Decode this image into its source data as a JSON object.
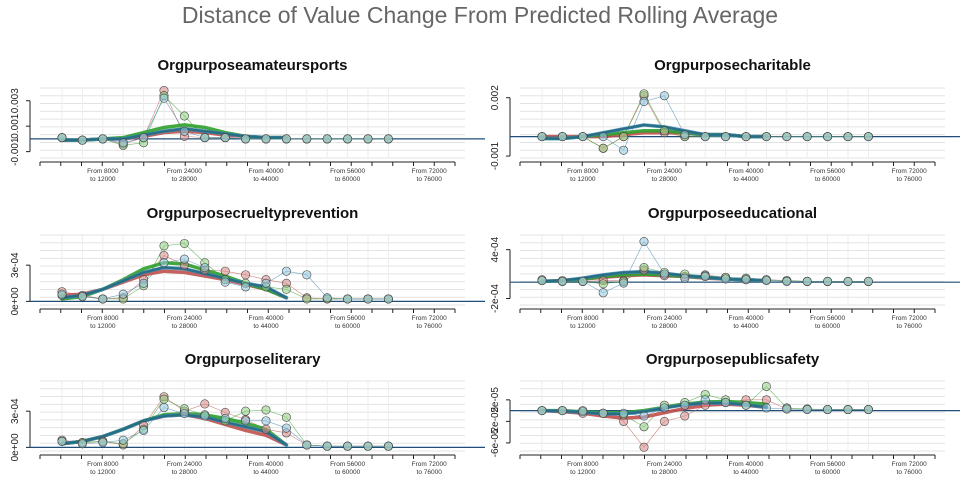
{
  "title": "Distance of Value Change From Predicted Rolling Average",
  "colors": {
    "red": "#c0504d",
    "green": "#2ea02c",
    "blue": "#3b83b1",
    "teal": "#236a7d",
    "baseline": "#1f4e79"
  },
  "x_tick_labels": [
    [
      "From 8000",
      "to 12000"
    ],
    [
      "From 24000",
      "to 28000"
    ],
    [
      "From 40000",
      "to 44000"
    ],
    [
      "From 56000",
      "to 60000"
    ],
    [
      "From 72000",
      "to 76000"
    ]
  ],
  "chart_data": [
    {
      "type": "line",
      "title": "Orgpurposeamateursports",
      "ylim": [
        -0.0015,
        0.004
      ],
      "yticks": [
        -0.001,
        0.001,
        0.003
      ],
      "ytick_labels": [
        "-0.001",
        "0.001",
        "0.003"
      ],
      "baseline": 0,
      "x": [
        0,
        1,
        2,
        3,
        4,
        5,
        6,
        7,
        8,
        9,
        10,
        11,
        12,
        13,
        14,
        15,
        16
      ],
      "points": [
        {
          "name": "red",
          "values": [
            0.0001,
            -0.0001,
            0.0,
            -0.0004,
            0.0001,
            0.0038,
            0.0002,
            0.0001,
            0.0001,
            0.0,
            0.0,
            0.0,
            0.0,
            0.0,
            0.0,
            0.0,
            0.0
          ]
        },
        {
          "name": "green",
          "values": [
            0.0001,
            -0.0001,
            0.0,
            -0.0005,
            -0.0003,
            0.0034,
            0.0018,
            0.0001,
            0.0001,
            0.0,
            0.0,
            0.0,
            0.0,
            0.0,
            0.0,
            0.0,
            0.0
          ]
        },
        {
          "name": "blue",
          "values": [
            0.0001,
            -0.0001,
            0.0,
            -0.0003,
            0.0001,
            0.0032,
            0.0006,
            0.0001,
            0.0001,
            0.0,
            0.0,
            0.0,
            0.0,
            0.0,
            0.0,
            0.0,
            0.0
          ]
        }
      ],
      "smooth": [
        {
          "name": "red",
          "values": [
            -0.0001,
            -0.0001,
            0.0,
            0.0,
            0.0002,
            0.0005,
            0.0006,
            0.0005,
            0.0003,
            0.0002,
            0.0001,
            0.0001
          ]
        },
        {
          "name": "green",
          "values": [
            -0.0001,
            -0.0001,
            0.0,
            0.0001,
            0.0005,
            0.0009,
            0.0011,
            0.0009,
            0.0005,
            0.0002,
            0.0001,
            0.0001
          ]
        },
        {
          "name": "blue",
          "values": [
            -0.0001,
            -0.0001,
            0.0,
            0.0,
            0.0003,
            0.0006,
            0.0008,
            0.0006,
            0.0004,
            0.0002,
            0.0001,
            0.0001
          ]
        }
      ]
    },
    {
      "type": "line",
      "title": "Orgpurposecharitable",
      "ylim": [
        -0.0011,
        0.0025
      ],
      "yticks": [
        -0.001,
        0.002
      ],
      "ytick_labels": [
        "-0.001",
        "0.002"
      ],
      "baseline": 0,
      "x": [
        0,
        1,
        2,
        3,
        4,
        5,
        6,
        7,
        8,
        9,
        10,
        11,
        12,
        13,
        14,
        15,
        16
      ],
      "points": [
        {
          "name": "red",
          "values": [
            0.0,
            0.0,
            0.0,
            -0.0006,
            0.0,
            0.0021,
            0.0002,
            0.0,
            0.0,
            0.0,
            0.0,
            0.0,
            0.0,
            0.0,
            0.0,
            0.0,
            0.0
          ]
        },
        {
          "name": "green",
          "values": [
            0.0,
            0.0,
            0.0,
            -0.0006,
            0.0,
            0.0022,
            0.0003,
            0.0,
            0.0,
            0.0,
            0.0,
            0.0,
            0.0,
            0.0,
            0.0,
            0.0,
            0.0
          ]
        },
        {
          "name": "blue",
          "values": [
            0.0,
            0.0,
            0.0,
            0.0,
            -0.0007,
            0.0018,
            0.0021,
            0.0001,
            0.0,
            0.0,
            0.0,
            0.0,
            0.0,
            0.0,
            0.0,
            0.0,
            0.0
          ]
        }
      ],
      "smooth": [
        {
          "name": "red",
          "values": [
            0.0,
            0.0,
            0.0,
            0.0,
            0.0001,
            0.0002,
            0.0002,
            0.0002,
            0.0001,
            0.0001,
            0.0,
            0.0
          ]
        },
        {
          "name": "green",
          "values": [
            -0.0001,
            -0.0001,
            0.0,
            0.0001,
            0.0002,
            0.0003,
            0.0003,
            0.0002,
            0.0001,
            0.0001,
            0.0,
            0.0
          ]
        },
        {
          "name": "blue",
          "values": [
            -0.0001,
            -0.0001,
            0.0,
            0.0002,
            0.0004,
            0.0006,
            0.0005,
            0.0003,
            0.0001,
            0.0001,
            0.0,
            0.0
          ]
        }
      ]
    },
    {
      "type": "line",
      "title": "Orgpurposecrueltyprevention",
      "ylim": [
        -3e-05,
        0.00055
      ],
      "yticks": [
        0,
        0.0003
      ],
      "ytick_labels": [
        "0e+00",
        "3e-04"
      ],
      "baseline": 0,
      "x": [
        0,
        1,
        2,
        3,
        4,
        5,
        6,
        7,
        8,
        9,
        10,
        11,
        12,
        13,
        14,
        15,
        16
      ],
      "points": [
        {
          "name": "red",
          "values": [
            8e-05,
            5e-05,
            2e-05,
            3e-05,
            0.00018,
            0.00038,
            0.0003,
            0.00026,
            0.00025,
            0.00022,
            0.00018,
            0.00015,
            3e-05,
            2e-05,
            2e-05,
            2e-05,
            2e-05
          ]
        },
        {
          "name": "green",
          "values": [
            5e-05,
            4e-05,
            2e-05,
            2e-05,
            0.00013,
            0.00046,
            0.00048,
            0.00032,
            0.00018,
            0.00015,
            0.00012,
            0.0001,
            2e-05,
            2e-05,
            2e-05,
            2e-05,
            2e-05
          ]
        },
        {
          "name": "blue",
          "values": [
            6e-05,
            4e-05,
            2e-05,
            6e-05,
            0.00015,
            0.00032,
            0.00035,
            0.00028,
            0.00016,
            0.00012,
            0.00015,
            0.00025,
            0.00022,
            3e-05,
            2e-05,
            2e-05,
            2e-05
          ]
        }
      ],
      "smooth": [
        {
          "name": "red",
          "values": [
            5e-05,
            6e-05,
            0.0001,
            0.00016,
            0.00022,
            0.00025,
            0.00024,
            0.00021,
            0.00018,
            0.00014,
            0.0001,
            3e-05
          ]
        },
        {
          "name": "green",
          "values": [
            2e-05,
            4e-05,
            0.0001,
            0.00018,
            0.00027,
            0.00032,
            0.00031,
            0.00026,
            0.00021,
            0.00015,
            0.0001,
            3e-05
          ]
        },
        {
          "name": "blue",
          "values": [
            3e-05,
            5e-05,
            0.0001,
            0.00017,
            0.00024,
            0.00028,
            0.00027,
            0.00023,
            0.00019,
            0.00015,
            0.00012,
            3e-05
          ]
        }
      ]
    },
    {
      "type": "line",
      "title": "Orgpurposeeducational",
      "ylim": [
        -0.00028,
        0.00058
      ],
      "yticks": [
        -0.0002,
        0.0004
      ],
      "ytick_labels": [
        "-2e-04",
        "4e-04"
      ],
      "baseline": 0,
      "x": [
        0,
        1,
        2,
        3,
        4,
        5,
        6,
        7,
        8,
        9,
        10,
        11,
        12,
        13,
        14,
        15,
        16
      ],
      "points": [
        {
          "name": "red",
          "values": [
            3e-05,
            2e-05,
            1e-05,
            2e-05,
            2e-05,
            0.00015,
            8e-05,
            7e-05,
            9e-05,
            6e-05,
            4e-05,
            3e-05,
            2e-05,
            1e-05,
            1e-05,
            1e-05,
            1e-05
          ]
        },
        {
          "name": "green",
          "values": [
            2e-05,
            1e-05,
            1e-05,
            -2e-05,
            1e-05,
            0.00018,
            0.00012,
            0.0001,
            8e-05,
            6e-05,
            5e-05,
            3e-05,
            2e-05,
            1e-05,
            1e-05,
            1e-05,
            1e-05
          ]
        },
        {
          "name": "blue",
          "values": [
            2e-05,
            1e-05,
            1e-05,
            -0.00013,
            -1e-05,
            0.0005,
            0.0001,
            5e-05,
            7e-05,
            4e-05,
            3e-05,
            2e-05,
            1e-05,
            1e-05,
            1e-05,
            1e-05,
            1e-05
          ]
        }
      ],
      "smooth": [
        {
          "name": "red",
          "values": [
            1e-05,
            2e-05,
            4e-05,
            6e-05,
            8e-05,
            9e-05,
            8e-05,
            7e-05,
            5e-05,
            4e-05,
            3e-05,
            2e-05
          ]
        },
        {
          "name": "green",
          "values": [
            1e-05,
            2e-05,
            4e-05,
            7e-05,
            9e-05,
            0.0001,
            9e-05,
            7e-05,
            6e-05,
            4e-05,
            3e-05,
            2e-05
          ]
        },
        {
          "name": "blue",
          "values": [
            1e-05,
            2e-05,
            5e-05,
            9e-05,
            0.00012,
            0.00013,
            0.00011,
            8e-05,
            6e-05,
            4e-05,
            3e-05,
            2e-05
          ]
        }
      ]
    },
    {
      "type": "line",
      "title": "Orgpurposeliterary",
      "ylim": [
        -3e-05,
        0.00055
      ],
      "yticks": [
        0,
        0.0003
      ],
      "ytick_labels": [
        "0e+00",
        "3e-04"
      ],
      "baseline": 0,
      "x": [
        0,
        1,
        2,
        3,
        4,
        5,
        6,
        7,
        8,
        9,
        10,
        11,
        12,
        13,
        14,
        15,
        16
      ],
      "points": [
        {
          "name": "red",
          "values": [
            6e-05,
            4e-05,
            5e-05,
            2e-05,
            0.00018,
            0.00042,
            0.0003,
            0.00036,
            0.00029,
            0.00023,
            0.00015,
            0.00012,
            2e-05,
            1e-05,
            1e-05,
            1e-05,
            1e-05
          ]
        },
        {
          "name": "green",
          "values": [
            5e-05,
            4e-05,
            5e-05,
            3e-05,
            0.00015,
            0.0004,
            0.00032,
            0.00027,
            0.00022,
            0.0003,
            0.00031,
            0.00025,
            2e-05,
            1e-05,
            1e-05,
            1e-05,
            1e-05
          ]
        },
        {
          "name": "blue",
          "values": [
            5e-05,
            3e-05,
            4e-05,
            6e-05,
            0.00014,
            0.00033,
            0.00028,
            0.00026,
            0.00024,
            0.00022,
            0.00022,
            0.00016,
            2e-05,
            1e-05,
            1e-05,
            1e-05,
            1e-05
          ]
        }
      ],
      "smooth": [
        {
          "name": "red",
          "values": [
            3e-05,
            5e-05,
            9e-05,
            0.00015,
            0.00022,
            0.00026,
            0.00027,
            0.00024,
            0.00019,
            0.00014,
            0.0001,
            2e-05
          ]
        },
        {
          "name": "green",
          "values": [
            3e-05,
            5e-05,
            9e-05,
            0.00015,
            0.00022,
            0.00027,
            0.00028,
            0.00027,
            0.00024,
            0.0002,
            0.00015,
            2e-05
          ]
        },
        {
          "name": "blue",
          "values": [
            3e-05,
            5e-05,
            9e-05,
            0.00015,
            0.00022,
            0.00026,
            0.00027,
            0.00025,
            0.00021,
            0.00017,
            0.00013,
            2e-05
          ]
        }
      ]
    },
    {
      "type": "line",
      "title": "Orgpurposepublicsafety",
      "ylim": [
        -7.5e-05,
        5.5e-05
      ],
      "yticks": [
        -6e-05,
        -2e-05,
        2e-05
      ],
      "ytick_labels": [
        "-6e-05",
        "-2e-05",
        "2e-05"
      ],
      "baseline": 0,
      "x": [
        0,
        1,
        2,
        3,
        4,
        5,
        6,
        7,
        8,
        9,
        10,
        11,
        12,
        13,
        14,
        15,
        16
      ],
      "points": [
        {
          "name": "red",
          "values": [
            0.0,
            0.0,
            -5e-06,
            -5e-06,
            -2e-05,
            -6.8e-05,
            -2e-05,
            -1e-05,
            1e-05,
            1.5e-05,
            2e-05,
            2e-05,
            3e-06,
            3e-06,
            2e-06,
            2e-06,
            2e-06
          ]
        },
        {
          "name": "green",
          "values": [
            0.0,
            0.0,
            0.0,
            -5e-06,
            -8e-06,
            -3e-05,
            1e-05,
            1.5e-05,
            3e-05,
            2e-05,
            1e-05,
            4.5e-05,
            5e-06,
            3e-06,
            2e-06,
            2e-06,
            2e-06
          ]
        },
        {
          "name": "blue",
          "values": [
            0.0,
            0.0,
            -2e-06,
            -5e-06,
            -5e-06,
            -1e-05,
            5e-06,
            1e-05,
            2e-05,
            1.5e-05,
            1e-05,
            5e-06,
            3e-06,
            2e-06,
            2e-06,
            2e-06,
            2e-06
          ]
        }
      ],
      "smooth": [
        {
          "name": "red",
          "values": [
            0.0,
            -2e-06,
            -5e-06,
            -1e-05,
            -1.4e-05,
            -1.2e-05,
            -4e-06,
            4e-06,
            1e-05,
            1.2e-05,
            1e-05,
            6e-06
          ]
        },
        {
          "name": "green",
          "values": [
            0.0,
            0.0,
            -2e-06,
            -4e-06,
            -4e-06,
            0.0,
            6e-06,
            1.2e-05,
            1.6e-05,
            1.7e-05,
            1.5e-05,
            1.2e-05
          ]
        },
        {
          "name": "blue",
          "values": [
            0.0,
            -1e-06,
            -3e-06,
            -6e-06,
            -6e-06,
            -2e-06,
            5e-06,
            1.1e-05,
            1.4e-05,
            1.4e-05,
            1.1e-05,
            6e-06
          ]
        }
      ]
    }
  ]
}
